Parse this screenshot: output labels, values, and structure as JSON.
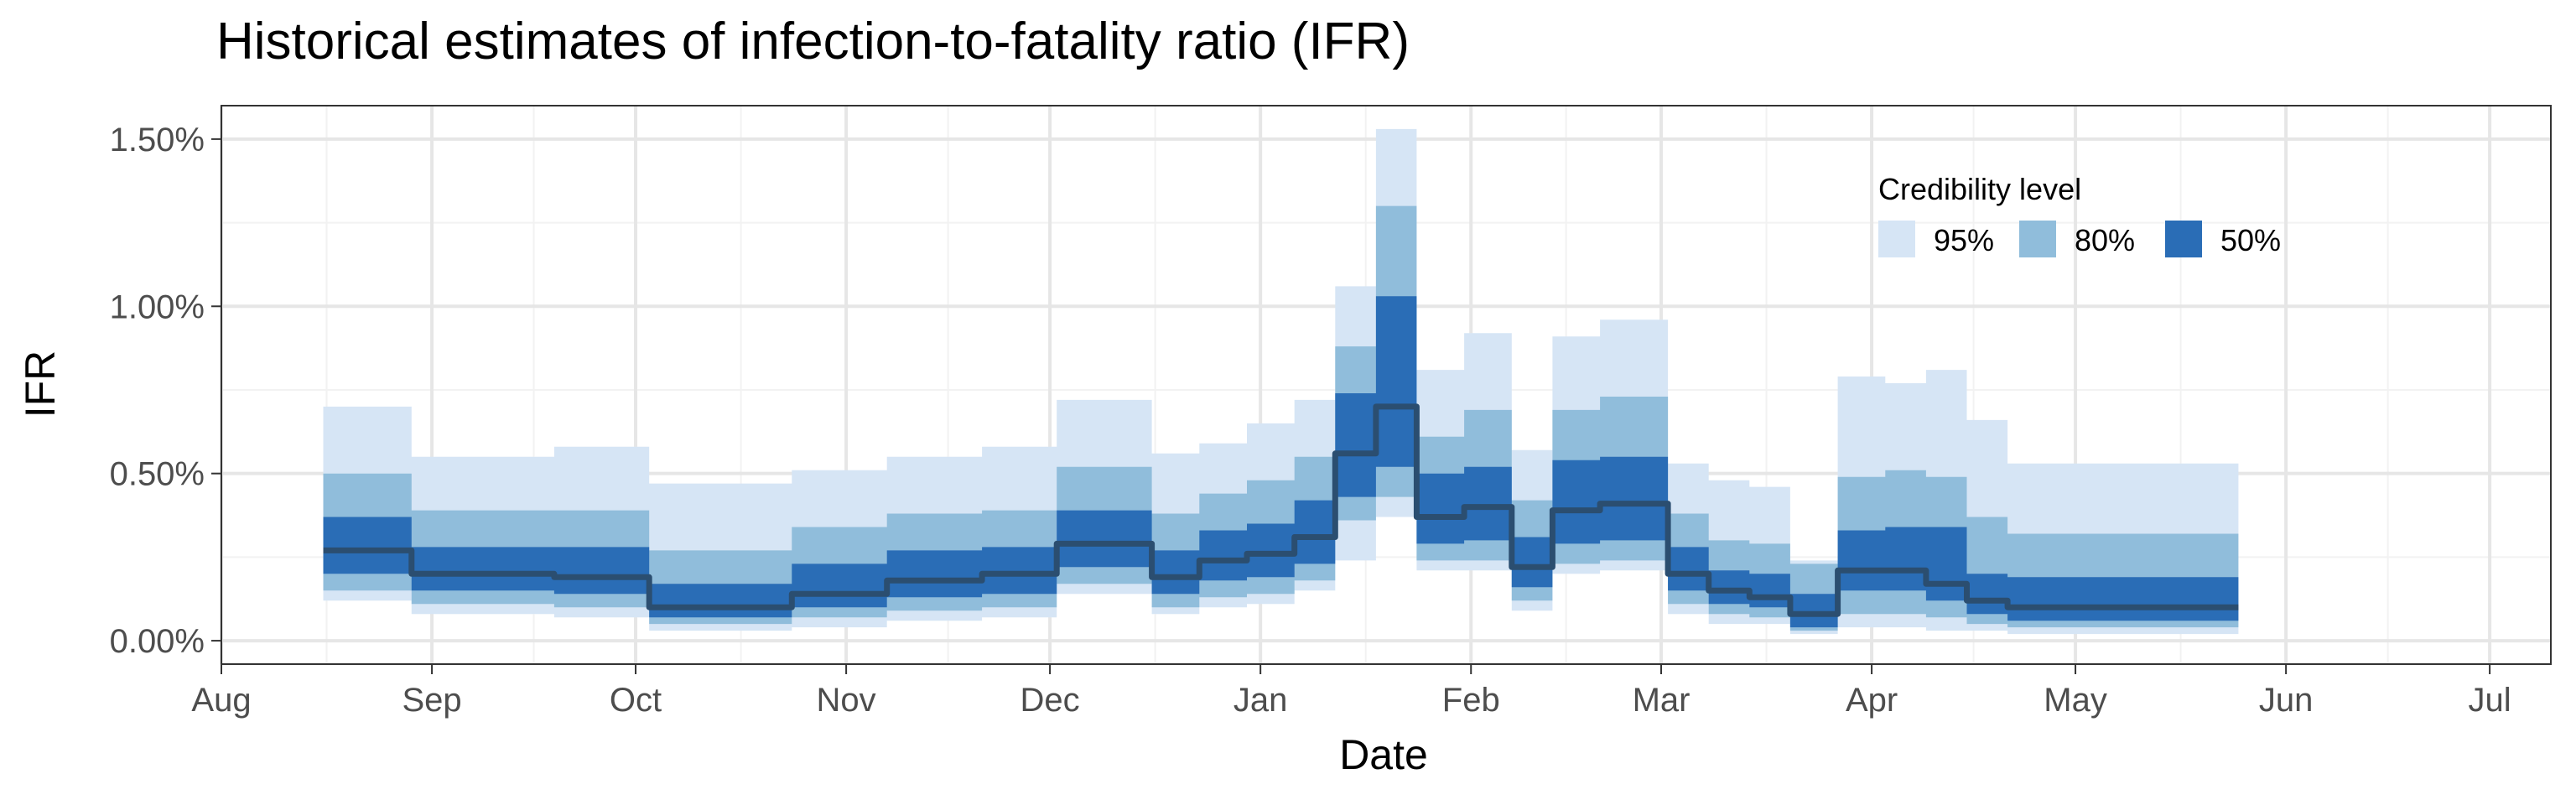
{
  "chart_data": {
    "type": "area",
    "title": "Historical estimates of infection-to-fatality ratio (IFR)",
    "xlabel": "Date",
    "ylabel": "IFR",
    "ylim": [
      -0.07,
      1.6
    ],
    "xlim": [
      "2020-08-01",
      "2021-07-10"
    ],
    "x_ticks": [
      {
        "date": "2020-08-01",
        "label": "Aug"
      },
      {
        "date": "2020-09-01",
        "label": "Sep"
      },
      {
        "date": "2020-10-01",
        "label": "Oct"
      },
      {
        "date": "2020-11-01",
        "label": "Nov"
      },
      {
        "date": "2020-12-01",
        "label": "Dec"
      },
      {
        "date": "2021-01-01",
        "label": "Jan"
      },
      {
        "date": "2021-02-01",
        "label": "Feb"
      },
      {
        "date": "2021-03-01",
        "label": "Mar"
      },
      {
        "date": "2021-04-01",
        "label": "Apr"
      },
      {
        "date": "2021-05-01",
        "label": "May"
      },
      {
        "date": "2021-06-01",
        "label": "Jun"
      },
      {
        "date": "2021-07-01",
        "label": "Jul"
      }
    ],
    "y_ticks": [
      {
        "value": 0.0,
        "label": "0.00%"
      },
      {
        "value": 0.5,
        "label": "0.50%"
      },
      {
        "value": 1.0,
        "label": "1.00%"
      },
      {
        "value": 1.5,
        "label": "1.50%"
      }
    ],
    "grid": true,
    "legend": {
      "title": "Credibility level",
      "placement": "top-right",
      "items": [
        {
          "label": "95%",
          "color": "#d6e5f5"
        },
        {
          "label": "80%",
          "color": "#90bddb"
        },
        {
          "label": "50%",
          "color": "#2a6db6"
        }
      ]
    },
    "median_color": "#2b4e70",
    "steps": [
      {
        "start": "2020-08-16",
        "end": "2020-08-29",
        "median": 0.27,
        "lo50": 0.2,
        "hi50": 0.37,
        "lo80": 0.15,
        "hi80": 0.5,
        "lo95": 0.12,
        "hi95": 0.7
      },
      {
        "start": "2020-08-29",
        "end": "2020-09-19",
        "median": 0.2,
        "lo50": 0.15,
        "hi50": 0.28,
        "lo80": 0.11,
        "hi80": 0.39,
        "lo95": 0.08,
        "hi95": 0.55
      },
      {
        "start": "2020-09-19",
        "end": "2020-10-03",
        "median": 0.19,
        "lo50": 0.14,
        "hi50": 0.28,
        "lo80": 0.1,
        "hi80": 0.39,
        "lo95": 0.07,
        "hi95": 0.58
      },
      {
        "start": "2020-10-03",
        "end": "2020-10-24",
        "median": 0.1,
        "lo50": 0.07,
        "hi50": 0.17,
        "lo80": 0.05,
        "hi80": 0.27,
        "lo95": 0.03,
        "hi95": 0.47
      },
      {
        "start": "2020-10-24",
        "end": "2020-11-07",
        "median": 0.14,
        "lo50": 0.1,
        "hi50": 0.23,
        "lo80": 0.07,
        "hi80": 0.34,
        "lo95": 0.04,
        "hi95": 0.51
      },
      {
        "start": "2020-11-07",
        "end": "2020-11-21",
        "median": 0.18,
        "lo50": 0.13,
        "hi50": 0.27,
        "lo80": 0.09,
        "hi80": 0.38,
        "lo95": 0.06,
        "hi95": 0.55
      },
      {
        "start": "2020-11-21",
        "end": "2020-12-02",
        "median": 0.2,
        "lo50": 0.14,
        "hi50": 0.28,
        "lo80": 0.1,
        "hi80": 0.39,
        "lo95": 0.07,
        "hi95": 0.58
      },
      {
        "start": "2020-12-02",
        "end": "2020-12-16",
        "median": 0.29,
        "lo50": 0.22,
        "hi50": 0.39,
        "lo80": 0.17,
        "hi80": 0.52,
        "lo95": 0.14,
        "hi95": 0.72
      },
      {
        "start": "2020-12-16",
        "end": "2020-12-23",
        "median": 0.19,
        "lo50": 0.14,
        "hi50": 0.27,
        "lo80": 0.1,
        "hi80": 0.38,
        "lo95": 0.08,
        "hi95": 0.56
      },
      {
        "start": "2020-12-23",
        "end": "2020-12-30",
        "median": 0.24,
        "lo50": 0.18,
        "hi50": 0.33,
        "lo80": 0.13,
        "hi80": 0.44,
        "lo95": 0.1,
        "hi95": 0.59
      },
      {
        "start": "2020-12-30",
        "end": "2021-01-06",
        "median": 0.26,
        "lo50": 0.19,
        "hi50": 0.35,
        "lo80": 0.14,
        "hi80": 0.48,
        "lo95": 0.11,
        "hi95": 0.65
      },
      {
        "start": "2021-01-06",
        "end": "2021-01-12",
        "median": 0.31,
        "lo50": 0.23,
        "hi50": 0.42,
        "lo80": 0.18,
        "hi80": 0.55,
        "lo95": 0.15,
        "hi95": 0.72
      },
      {
        "start": "2021-01-12",
        "end": "2021-01-18",
        "median": 0.56,
        "lo50": 0.43,
        "hi50": 0.74,
        "lo80": 0.36,
        "hi80": 0.88,
        "lo95": 0.24,
        "hi95": 1.06
      },
      {
        "start": "2021-01-18",
        "end": "2021-01-24",
        "median": 0.7,
        "lo50": 0.52,
        "hi50": 1.03,
        "lo80": 0.43,
        "hi80": 1.3,
        "lo95": 0.37,
        "hi95": 1.53
      },
      {
        "start": "2021-01-24",
        "end": "2021-01-31",
        "median": 0.37,
        "lo50": 0.29,
        "hi50": 0.5,
        "lo80": 0.24,
        "hi80": 0.61,
        "lo95": 0.21,
        "hi95": 0.81
      },
      {
        "start": "2021-01-31",
        "end": "2021-02-07",
        "median": 0.4,
        "lo50": 0.3,
        "hi50": 0.52,
        "lo80": 0.24,
        "hi80": 0.69,
        "lo95": 0.21,
        "hi95": 0.92
      },
      {
        "start": "2021-02-07",
        "end": "2021-02-13",
        "median": 0.22,
        "lo50": 0.16,
        "hi50": 0.31,
        "lo80": 0.12,
        "hi80": 0.42,
        "lo95": 0.09,
        "hi95": 0.57
      },
      {
        "start": "2021-02-13",
        "end": "2021-02-20",
        "median": 0.39,
        "lo50": 0.29,
        "hi50": 0.54,
        "lo80": 0.23,
        "hi80": 0.69,
        "lo95": 0.2,
        "hi95": 0.91
      },
      {
        "start": "2021-02-20",
        "end": "2021-03-02",
        "median": 0.41,
        "lo50": 0.3,
        "hi50": 0.55,
        "lo80": 0.24,
        "hi80": 0.73,
        "lo95": 0.21,
        "hi95": 0.96
      },
      {
        "start": "2021-03-02",
        "end": "2021-03-08",
        "median": 0.2,
        "lo50": 0.15,
        "hi50": 0.28,
        "lo80": 0.11,
        "hi80": 0.38,
        "lo95": 0.08,
        "hi95": 0.53
      },
      {
        "start": "2021-03-08",
        "end": "2021-03-14",
        "median": 0.15,
        "lo50": 0.11,
        "hi50": 0.21,
        "lo80": 0.08,
        "hi80": 0.3,
        "lo95": 0.05,
        "hi95": 0.48
      },
      {
        "start": "2021-03-14",
        "end": "2021-03-20",
        "median": 0.13,
        "lo50": 0.1,
        "hi50": 0.2,
        "lo80": 0.07,
        "hi80": 0.29,
        "lo95": 0.05,
        "hi95": 0.46
      },
      {
        "start": "2021-03-20",
        "end": "2021-03-27",
        "median": 0.08,
        "lo50": 0.04,
        "hi50": 0.14,
        "lo80": 0.03,
        "hi80": 0.23,
        "lo95": 0.02,
        "hi95": 0.24
      },
      {
        "start": "2021-03-27",
        "end": "2021-04-03",
        "median": 0.21,
        "lo50": 0.15,
        "hi50": 0.33,
        "lo80": 0.08,
        "hi80": 0.49,
        "lo95": 0.04,
        "hi95": 0.79
      },
      {
        "start": "2021-04-03",
        "end": "2021-04-09",
        "median": 0.21,
        "lo50": 0.15,
        "hi50": 0.34,
        "lo80": 0.08,
        "hi80": 0.51,
        "lo95": 0.04,
        "hi95": 0.77
      },
      {
        "start": "2021-04-09",
        "end": "2021-04-15",
        "median": 0.17,
        "lo50": 0.12,
        "hi50": 0.34,
        "lo80": 0.07,
        "hi80": 0.49,
        "lo95": 0.03,
        "hi95": 0.81
      },
      {
        "start": "2021-04-15",
        "end": "2021-04-21",
        "median": 0.12,
        "lo50": 0.08,
        "hi50": 0.2,
        "lo80": 0.05,
        "hi80": 0.37,
        "lo95": 0.03,
        "hi95": 0.66
      },
      {
        "start": "2021-04-21",
        "end": "2021-05-25",
        "median": 0.1,
        "lo50": 0.06,
        "hi50": 0.19,
        "lo80": 0.04,
        "hi80": 0.32,
        "lo95": 0.02,
        "hi95": 0.53
      }
    ]
  }
}
